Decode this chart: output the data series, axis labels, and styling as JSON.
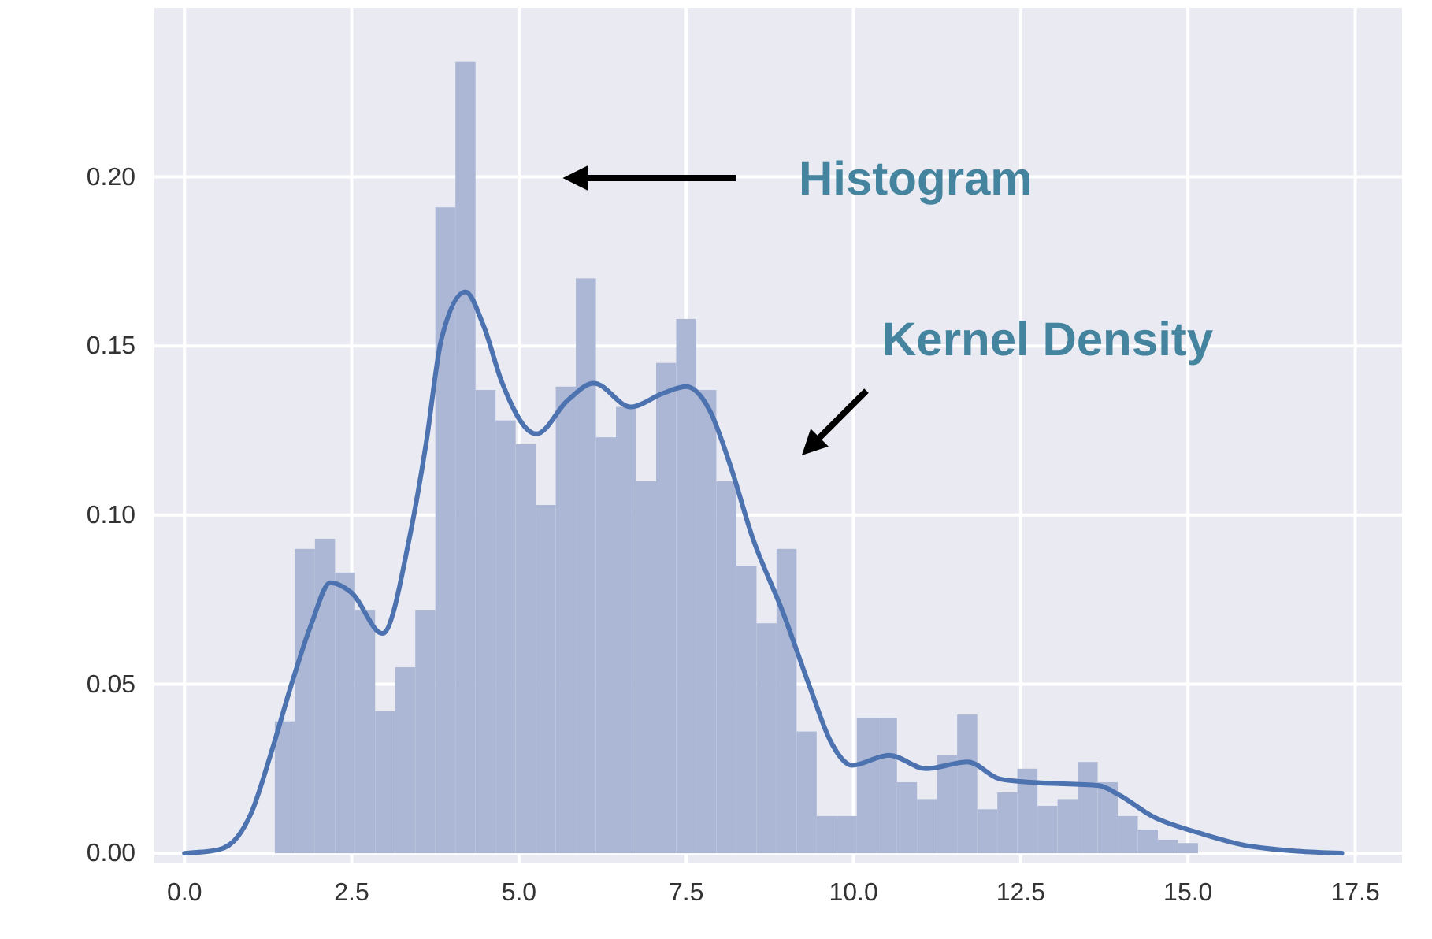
{
  "chart_data": {
    "type": "histogram",
    "xlim": [
      -0.45,
      18.2
    ],
    "ylim": [
      -0.003,
      0.25
    ],
    "xticks": [
      {
        "value": 0,
        "label": "0.0"
      },
      2.5,
      {
        "value": 5,
        "label": "5.0"
      },
      7.5,
      {
        "value": 10,
        "label": "10.0"
      },
      12.5,
      {
        "value": 15,
        "label": "15.0"
      },
      17.5
    ],
    "yticks": [
      {
        "value": 0,
        "label": "0.00"
      },
      0.05,
      {
        "value": 0.1,
        "label": "0.10"
      },
      0.15,
      {
        "value": 0.2,
        "label": "0.20"
      }
    ],
    "grid": true,
    "series": [
      {
        "color": "#abb7d4",
        "bins": [
          1.35,
          1.65,
          1.95,
          2.25,
          2.55,
          2.85,
          3.15,
          3.45,
          3.75,
          4.05,
          4.35,
          4.65,
          4.95,
          5.25,
          5.55,
          5.85,
          6.15,
          6.45,
          6.75,
          7.05,
          7.35,
          7.65,
          7.95,
          8.25,
          8.55,
          8.85,
          9.15,
          9.45,
          9.75,
          10.05,
          10.35,
          10.65,
          10.95,
          11.25,
          11.55,
          11.85,
          12.15,
          12.45,
          12.75,
          13.05,
          13.35,
          13.65,
          13.95,
          14.25,
          14.55,
          14.85,
          15.15
        ],
        "values": [
          0.039,
          0.09,
          0.093,
          0.083,
          0.072,
          0.042,
          0.055,
          0.072,
          0.191,
          0.234,
          0.137,
          0.128,
          0.121,
          0.103,
          0.138,
          0.17,
          0.123,
          0.132,
          0.11,
          0.145,
          0.158,
          0.137,
          0.11,
          0.085,
          0.068,
          0.09,
          0.036,
          0.011,
          0.011,
          0.04,
          0.04,
          0.021,
          0.016,
          0.029,
          0.041,
          0.013,
          0.018,
          0.025,
          0.014,
          0.016,
          0.027,
          0.021,
          0.011,
          0.007,
          0.004,
          0.003
        ]
      },
      {
        "type": "line",
        "color": "#4c72b0",
        "x": [
          0.0,
          0.5,
          0.8,
          1.0,
          1.3,
          1.6,
          1.9,
          2.18,
          2.5,
          2.96,
          3.37,
          3.61,
          3.84,
          4.2,
          4.47,
          4.75,
          5.26,
          5.73,
          6.12,
          6.67,
          7.15,
          7.5,
          7.85,
          8.17,
          8.48,
          8.95,
          9.35,
          9.66,
          9.98,
          10.53,
          11.08,
          11.71,
          12.18,
          12.65,
          13.67,
          13.99,
          14.46,
          15.17,
          15.95,
          17.3
        ],
        "values": [
          0.0,
          0.001,
          0.005,
          0.012,
          0.03,
          0.05,
          0.068,
          0.08,
          0.077,
          0.065,
          0.094,
          0.121,
          0.152,
          0.166,
          0.156,
          0.139,
          0.124,
          0.134,
          0.139,
          0.132,
          0.136,
          0.138,
          0.131,
          0.114,
          0.094,
          0.071,
          0.049,
          0.033,
          0.026,
          0.029,
          0.025,
          0.027,
          0.022,
          0.021,
          0.02,
          0.017,
          0.011,
          0.006,
          0.002,
          0.0
        ]
      }
    ],
    "annotations": [
      "Histogram",
      "Kernel Density"
    ]
  }
}
